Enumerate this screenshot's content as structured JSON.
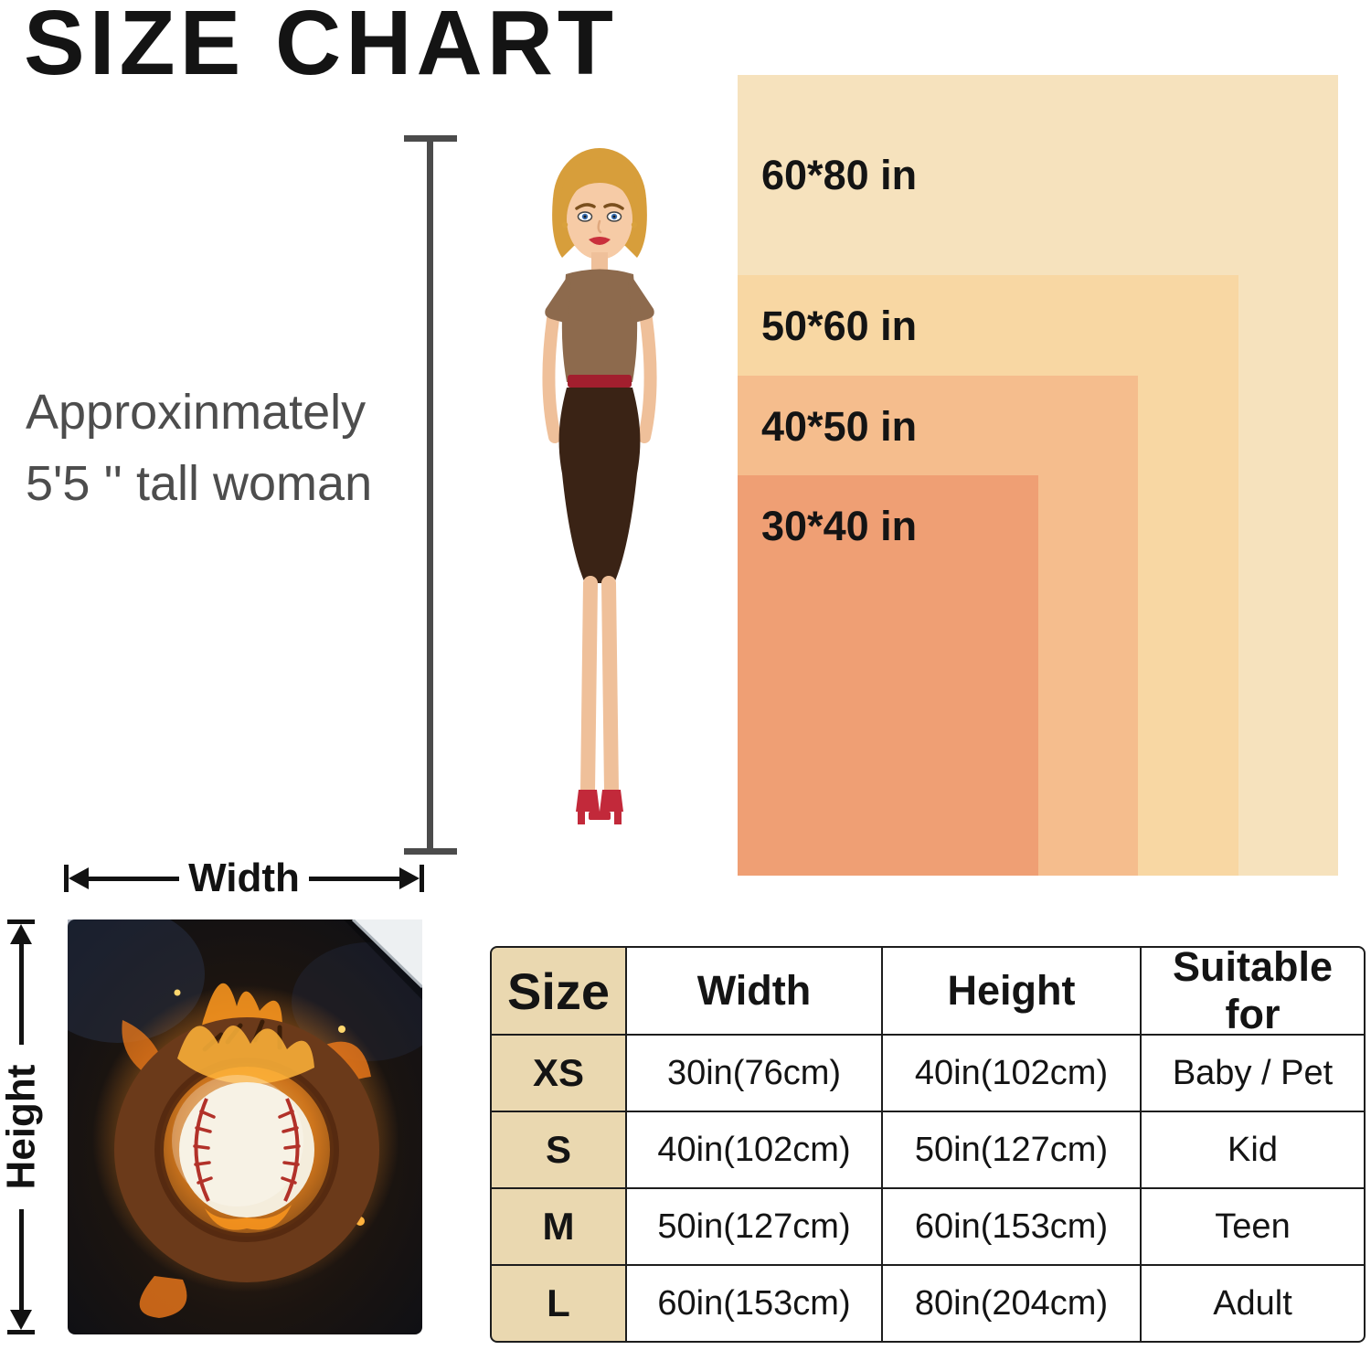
{
  "title": "SIZE CHART",
  "note": {
    "line1": "Approxinmately",
    "line2": "5'5 '' tall woman"
  },
  "size_boxes": [
    {
      "label": "60*80 in",
      "width_in": 60,
      "height_in": 80,
      "color": "#f6e2bd"
    },
    {
      "label": "50*60 in",
      "width_in": 50,
      "height_in": 60,
      "color": "#f8d7a3"
    },
    {
      "label": "40*50 in",
      "width_in": 40,
      "height_in": 50,
      "color": "#f5bd8d"
    },
    {
      "label": "30*40 in",
      "width_in": 30,
      "height_in": 40,
      "color": "#ef9f74"
    }
  ],
  "dimensions": {
    "width_label": "Width",
    "height_label": "Height"
  },
  "table": {
    "headers": [
      "Size",
      "Width",
      "Height",
      "Suitable for"
    ],
    "rows": [
      {
        "size": "XS",
        "width": "30in(76cm)",
        "height": "40in(102cm)",
        "suitable": "Baby / Pet"
      },
      {
        "size": "S",
        "width": "40in(102cm)",
        "height": "50in(127cm)",
        "suitable": "Kid"
      },
      {
        "size": "M",
        "width": "50in(127cm)",
        "height": "60in(153cm)",
        "suitable": "Teen"
      },
      {
        "size": "L",
        "width": "60in(153cm)",
        "height": "80in(204cm)",
        "suitable": "Adult"
      }
    ]
  },
  "colors": {
    "size_column_bg": "#ead8b0",
    "table_border": "#1d1d1d",
    "note_text": "#4d4d4d"
  }
}
